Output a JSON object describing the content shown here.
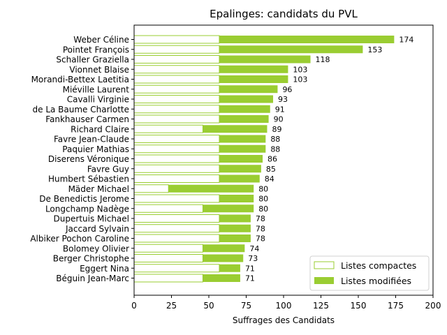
{
  "chart_data": {
    "type": "bar",
    "orientation": "horizontal",
    "stacking": "overlay",
    "title": "Epalinges: candidats du PVL",
    "xlabel": "Suffrages des Candidats",
    "ylabel": "",
    "xlim": [
      0,
      200
    ],
    "xticks": [
      0,
      25,
      50,
      75,
      100,
      125,
      150,
      175,
      200
    ],
    "grid": false,
    "legend_position": "bottom-right",
    "colors": {
      "compactes_fill": "#ffffff",
      "compactes_edge": "#9acd32",
      "modifiees_fill": "#9acd32"
    },
    "categories": [
      "Weber Céline",
      "Pointet François",
      "Schaller Graziella",
      "Vionnet Blaise",
      "Morandi-Bettex Laetitia",
      "Miéville Laurent",
      "Cavalli Virginie",
      "de La Baume Charlotte",
      "Fankhauser Carmen",
      "Richard Claire",
      "Favre Jean-Claude",
      "Paquier Mathias",
      "Diserens Véronique",
      "Favre Guy",
      "Humbert Sébastien",
      "Mäder Michael",
      "De Benedictis Jerome",
      "Longchamp Nadège",
      "Dupertuis Michael",
      "Jaccard Sylvain",
      "Albiker Pochon Caroline",
      "Bolomey Olivier",
      "Berger Christophe",
      "Eggert Nina",
      "Béguin Jean-Marc"
    ],
    "series": [
      {
        "name": "Listes compactes",
        "values": [
          57,
          57,
          57,
          57,
          57,
          57,
          57,
          57,
          57,
          46,
          57,
          57,
          57,
          57,
          57,
          23,
          57,
          46,
          57,
          57,
          57,
          46,
          46,
          57,
          46
        ]
      },
      {
        "name": "Listes modifiées",
        "values": [
          117,
          96,
          61,
          46,
          46,
          39,
          36,
          34,
          33,
          43,
          31,
          31,
          29,
          28,
          27,
          57,
          23,
          34,
          21,
          21,
          21,
          28,
          27,
          14,
          25
        ]
      }
    ],
    "totals": [
      174,
      153,
      118,
      103,
      103,
      96,
      93,
      91,
      90,
      89,
      88,
      88,
      86,
      85,
      84,
      80,
      80,
      80,
      78,
      78,
      78,
      74,
      73,
      71,
      71
    ]
  }
}
